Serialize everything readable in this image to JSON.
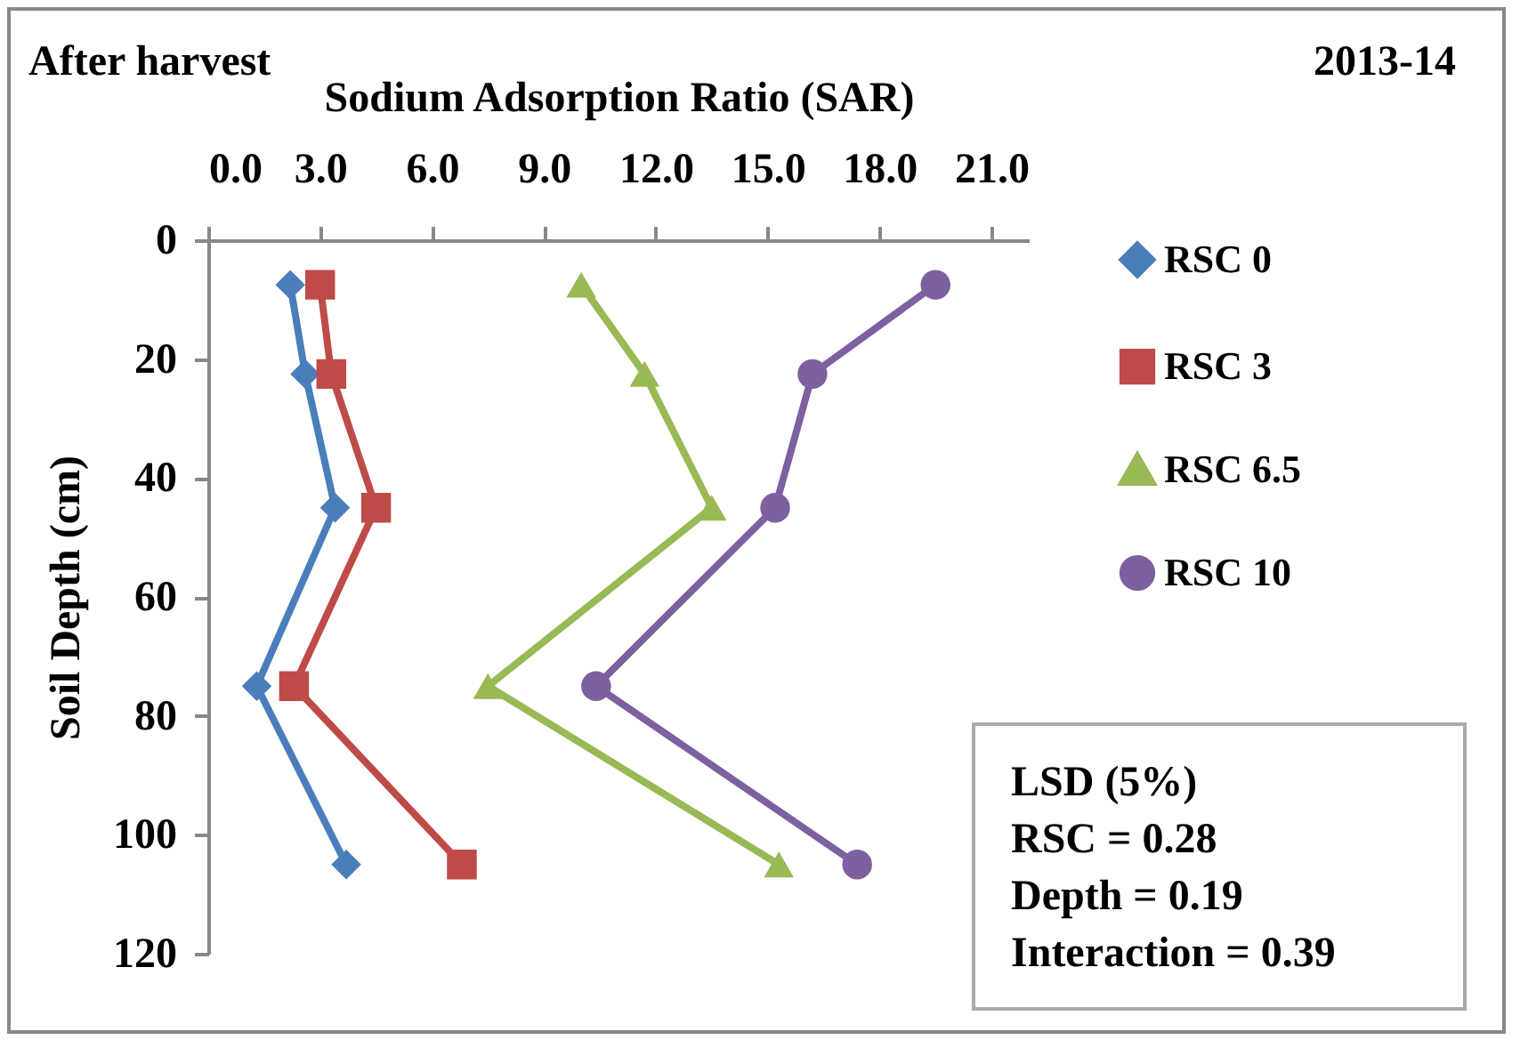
{
  "chart_data": {
    "type": "line",
    "xlabel": "Sodium Adsorption Ratio (SAR)",
    "ylabel": "Soil Depth (cm)",
    "annotations": [
      "After harvest",
      "2013-14",
      "LSD (5%)",
      "RSC = 0.28",
      "Depth = 0.19",
      "Interaction = 0.39"
    ],
    "xlim": [
      0,
      22
    ],
    "xticks": [
      {
        "value": 0,
        "label": "0.0"
      },
      {
        "value": 3,
        "label": "3.0"
      },
      {
        "value": 6,
        "label": "6.0"
      },
      {
        "value": 9,
        "label": "9.0"
      },
      {
        "value": 12,
        "label": "12.0"
      },
      {
        "value": 15,
        "label": "15.0"
      },
      {
        "value": 18,
        "label": "18.0"
      },
      {
        "value": 21,
        "label": "21.0"
      }
    ],
    "ylim": [
      120,
      0
    ],
    "yticks": [
      0,
      20,
      40,
      60,
      80,
      100,
      120
    ],
    "grid": false,
    "legend": "right",
    "line_style": "solid",
    "series": [
      {
        "name": "RSC 0",
        "color": "#4a7ebb",
        "marker": "diamond",
        "x": [
          2.2,
          2.6,
          3.4,
          1.3,
          3.7
        ],
        "values": [
          7.5,
          22.5,
          45,
          75,
          105
        ]
      },
      {
        "name": "RSC 3",
        "color": "#be4b48",
        "marker": "square",
        "x": [
          3.0,
          3.3,
          4.5,
          2.3,
          6.8
        ],
        "values": [
          7.5,
          22.5,
          45,
          75,
          105
        ]
      },
      {
        "name": "RSC 6.5",
        "color": "#98b954",
        "marker": "triangle",
        "x": [
          10.0,
          11.7,
          13.5,
          7.5,
          15.3
        ],
        "values": [
          7.5,
          22.5,
          45,
          75,
          105
        ]
      },
      {
        "name": "RSC 10",
        "color": "#7d60a0",
        "marker": "circle",
        "x": [
          19.5,
          16.2,
          15.2,
          10.4,
          17.4
        ],
        "values": [
          7.5,
          22.5,
          45,
          75,
          105
        ]
      }
    ]
  }
}
